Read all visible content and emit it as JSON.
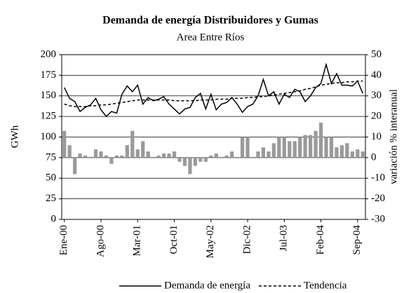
{
  "chart_data": {
    "type": "bar_line",
    "title": "Demanda de energía Distribuidores y Gumas",
    "subtitle": "Area Entre Ríos",
    "y_label": "GWh",
    "y2_label": "variación % interanual",
    "categories": [
      "Ene-00",
      null,
      null,
      null,
      null,
      null,
      null,
      "Ago-00",
      null,
      null,
      null,
      null,
      null,
      null,
      "Mar-01",
      null,
      null,
      null,
      null,
      null,
      null,
      "Oct-01",
      null,
      null,
      null,
      null,
      null,
      null,
      "May-02",
      null,
      null,
      null,
      null,
      null,
      null,
      "Dic-02",
      null,
      null,
      null,
      null,
      null,
      null,
      "Jul-03",
      null,
      null,
      null,
      null,
      null,
      null,
      "Feb-04",
      null,
      null,
      null,
      null,
      null,
      null,
      "Sep-04",
      null
    ],
    "series": [
      {
        "name": null,
        "type": "bar",
        "axis": "y2",
        "color": "#9a9a9a",
        "values": [
          13,
          6,
          -8,
          2,
          1,
          0,
          4,
          3,
          1,
          -3,
          1,
          1,
          6,
          13,
          4,
          8,
          3,
          0,
          1,
          2,
          2,
          3,
          -2,
          -4,
          -8,
          -4,
          -2,
          -2,
          1,
          2,
          0,
          1,
          3,
          0,
          10,
          10,
          0,
          3,
          5,
          3,
          7,
          10,
          10,
          8,
          8,
          10,
          11,
          11,
          13,
          17,
          10,
          10,
          5,
          6,
          7,
          3,
          4,
          3
        ]
      },
      {
        "name": "Demanda de energía",
        "type": "line",
        "style": "solid",
        "color": "#000000",
        "values": [
          160,
          147,
          143,
          131,
          136,
          139,
          147,
          133,
          125,
          131,
          129,
          152,
          162,
          155,
          163,
          140,
          148,
          144,
          146,
          149,
          140,
          134,
          128,
          134,
          136,
          148,
          153,
          134,
          152,
          133,
          140,
          142,
          148,
          140,
          130,
          137,
          140,
          150,
          170,
          150,
          155,
          140,
          152,
          148,
          158,
          155,
          143,
          150,
          160,
          165,
          188,
          165,
          177,
          163,
          163,
          162,
          168,
          153
        ]
      },
      {
        "name": "Tendencia",
        "type": "line",
        "style": "dashed",
        "color": "#000000",
        "values": [
          140,
          138,
          137,
          137,
          137,
          138,
          138,
          139,
          139,
          140,
          141,
          142,
          143,
          144,
          145,
          145,
          145,
          145,
          145,
          145,
          145,
          144,
          144,
          144,
          144,
          144,
          145,
          145,
          145,
          146,
          146,
          146,
          147,
          147,
          147,
          148,
          148,
          149,
          149,
          150,
          151,
          152,
          153,
          154,
          155,
          156,
          158,
          159,
          161,
          163,
          164,
          165,
          166,
          166,
          167,
          167,
          168,
          168
        ]
      }
    ],
    "ylim": [
      0,
      200
    ],
    "yticks": [
      0,
      25,
      50,
      75,
      100,
      125,
      150,
      175,
      200
    ],
    "y2lim": [
      -30,
      50
    ],
    "y2ticks": [
      -30,
      -20,
      -10,
      0,
      10,
      20,
      30,
      40,
      50
    ],
    "grid": true,
    "legend": "bottom"
  }
}
